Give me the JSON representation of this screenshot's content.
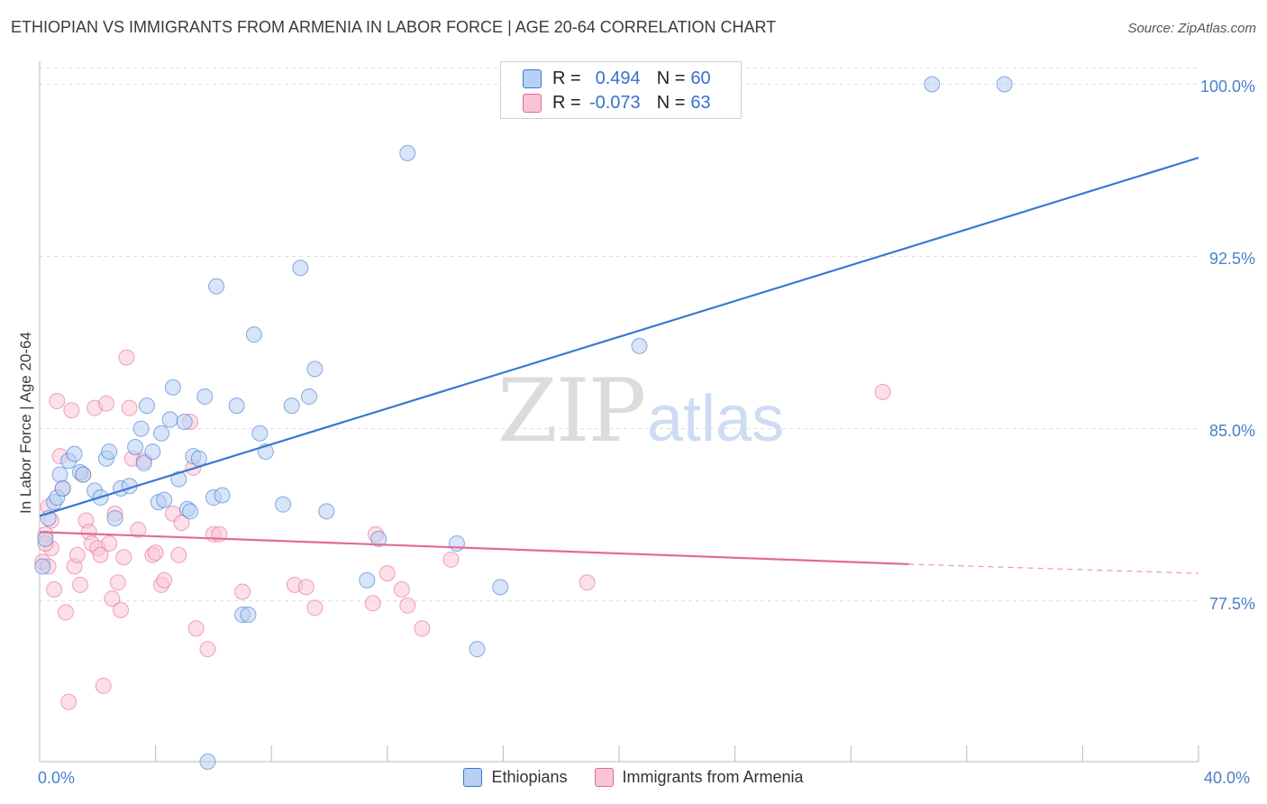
{
  "title": "ETHIOPIAN VS IMMIGRANTS FROM ARMENIA IN LABOR FORCE | AGE 20-64 CORRELATION CHART",
  "source": "Source: ZipAtlas.com",
  "watermark": {
    "zip": "ZIP",
    "atlas": "atlas"
  },
  "stats": {
    "row1": {
      "r_label": "R = ",
      "r_value": "0.494",
      "n_label": "N = ",
      "n_value": "60"
    },
    "row2": {
      "r_label": "R = ",
      "r_value": "-0.073",
      "n_label": "N = ",
      "n_value": "63"
    }
  },
  "legend": {
    "ethiopians": "Ethiopians",
    "armenia": "Immigrants from Armenia"
  },
  "colors": {
    "blue": "#3a78d0",
    "blue_fill": "#b8d0f3",
    "pink": "#e36a95",
    "pink_fill": "#f9c4d6"
  },
  "chart_data": {
    "type": "scatter",
    "xlabel": "",
    "ylabel": "In Labor Force | Age 20-64",
    "xlim": [
      0,
      40
    ],
    "ylim": [
      70.5,
      101
    ],
    "x_tick_labels": [
      "0.0%",
      "40.0%"
    ],
    "y_ticks": [
      77.5,
      85.0,
      92.5,
      100.0
    ],
    "y_tick_labels": [
      "77.5%",
      "85.0%",
      "92.5%",
      "100.0%"
    ],
    "series": [
      {
        "name": "Ethiopians",
        "color": "#3a78d0",
        "trend": {
          "x0": 0,
          "y0": 81.2,
          "x1": 40,
          "y1": 96.8
        },
        "points": [
          [
            0.2,
            80.2
          ],
          [
            0.3,
            81.1
          ],
          [
            0.5,
            81.8
          ],
          [
            0.6,
            82.0
          ],
          [
            0.7,
            83.0
          ],
          [
            0.8,
            82.4
          ],
          [
            1.0,
            83.6
          ],
          [
            1.2,
            83.9
          ],
          [
            1.4,
            83.1
          ],
          [
            1.5,
            83.0
          ],
          [
            1.9,
            82.3
          ],
          [
            2.1,
            82.0
          ],
          [
            2.3,
            83.7
          ],
          [
            2.4,
            84.0
          ],
          [
            2.6,
            81.1
          ],
          [
            2.8,
            82.4
          ],
          [
            3.1,
            82.5
          ],
          [
            3.3,
            84.2
          ],
          [
            3.5,
            85.0
          ],
          [
            3.6,
            83.5
          ],
          [
            3.7,
            86.0
          ],
          [
            3.9,
            84.0
          ],
          [
            4.1,
            81.8
          ],
          [
            4.2,
            84.8
          ],
          [
            4.3,
            81.9
          ],
          [
            4.5,
            85.4
          ],
          [
            4.6,
            86.8
          ],
          [
            4.8,
            82.8
          ],
          [
            5.0,
            85.3
          ],
          [
            5.1,
            81.5
          ],
          [
            5.2,
            81.4
          ],
          [
            5.3,
            83.8
          ],
          [
            5.5,
            83.7
          ],
          [
            5.7,
            86.4
          ],
          [
            6.0,
            82.0
          ],
          [
            6.1,
            91.2
          ],
          [
            6.3,
            82.1
          ],
          [
            6.8,
            86.0
          ],
          [
            7.0,
            76.9
          ],
          [
            7.2,
            76.9
          ],
          [
            7.4,
            89.1
          ],
          [
            7.6,
            84.8
          ],
          [
            7.8,
            84.0
          ],
          [
            8.4,
            81.7
          ],
          [
            8.7,
            86.0
          ],
          [
            9.0,
            92.0
          ],
          [
            9.3,
            86.4
          ],
          [
            9.5,
            87.6
          ],
          [
            9.9,
            81.4
          ],
          [
            11.3,
            78.4
          ],
          [
            11.7,
            80.2
          ],
          [
            12.7,
            97.0
          ],
          [
            14.4,
            80.0
          ],
          [
            15.1,
            75.4
          ],
          [
            15.9,
            78.1
          ],
          [
            20.7,
            88.6
          ],
          [
            30.8,
            100.0
          ],
          [
            33.3,
            100.0
          ],
          [
            5.8,
            70.5
          ],
          [
            0.1,
            79.0
          ]
        ]
      },
      {
        "name": "Immigrants from Armenia",
        "color": "#e36a95",
        "trend": {
          "x0": 0,
          "y0": 80.5,
          "x1": 30,
          "y1": 79.1,
          "dash_x1": 40,
          "dash_y1": 78.7
        },
        "points": [
          [
            0.1,
            79.2
          ],
          [
            0.2,
            80.4
          ],
          [
            0.3,
            81.6
          ],
          [
            0.4,
            79.8
          ],
          [
            0.5,
            78.0
          ],
          [
            0.6,
            86.2
          ],
          [
            0.7,
            83.8
          ],
          [
            0.8,
            82.4
          ],
          [
            0.9,
            77.0
          ],
          [
            1.0,
            73.1
          ],
          [
            1.1,
            85.8
          ],
          [
            1.2,
            79.0
          ],
          [
            1.3,
            79.5
          ],
          [
            1.4,
            78.2
          ],
          [
            1.5,
            83.0
          ],
          [
            1.6,
            81.0
          ],
          [
            1.7,
            80.5
          ],
          [
            1.8,
            80.0
          ],
          [
            1.9,
            85.9
          ],
          [
            2.0,
            79.8
          ],
          [
            2.1,
            79.5
          ],
          [
            2.2,
            73.8
          ],
          [
            2.3,
            86.1
          ],
          [
            2.4,
            80.0
          ],
          [
            2.5,
            77.6
          ],
          [
            2.6,
            81.3
          ],
          [
            2.7,
            78.3
          ],
          [
            2.8,
            77.1
          ],
          [
            2.9,
            79.4
          ],
          [
            3.0,
            88.1
          ],
          [
            3.1,
            85.9
          ],
          [
            3.2,
            83.7
          ],
          [
            3.4,
            80.6
          ],
          [
            3.6,
            83.6
          ],
          [
            3.9,
            79.5
          ],
          [
            4.0,
            79.6
          ],
          [
            4.2,
            78.2
          ],
          [
            4.3,
            78.4
          ],
          [
            4.6,
            81.3
          ],
          [
            4.8,
            79.5
          ],
          [
            4.9,
            80.9
          ],
          [
            5.2,
            85.3
          ],
          [
            5.3,
            83.3
          ],
          [
            5.4,
            76.3
          ],
          [
            5.8,
            75.4
          ],
          [
            6.0,
            80.4
          ],
          [
            6.2,
            80.4
          ],
          [
            7.0,
            77.9
          ],
          [
            8.8,
            78.2
          ],
          [
            9.2,
            78.1
          ],
          [
            9.5,
            77.2
          ],
          [
            11.5,
            77.4
          ],
          [
            11.6,
            80.4
          ],
          [
            12.0,
            78.7
          ],
          [
            12.5,
            78.0
          ],
          [
            12.7,
            77.3
          ],
          [
            13.2,
            76.3
          ],
          [
            14.2,
            79.3
          ],
          [
            18.9,
            78.3
          ],
          [
            29.1,
            86.6
          ],
          [
            0.2,
            80.0
          ],
          [
            0.3,
            79.0
          ],
          [
            0.4,
            81.0
          ]
        ]
      }
    ]
  }
}
